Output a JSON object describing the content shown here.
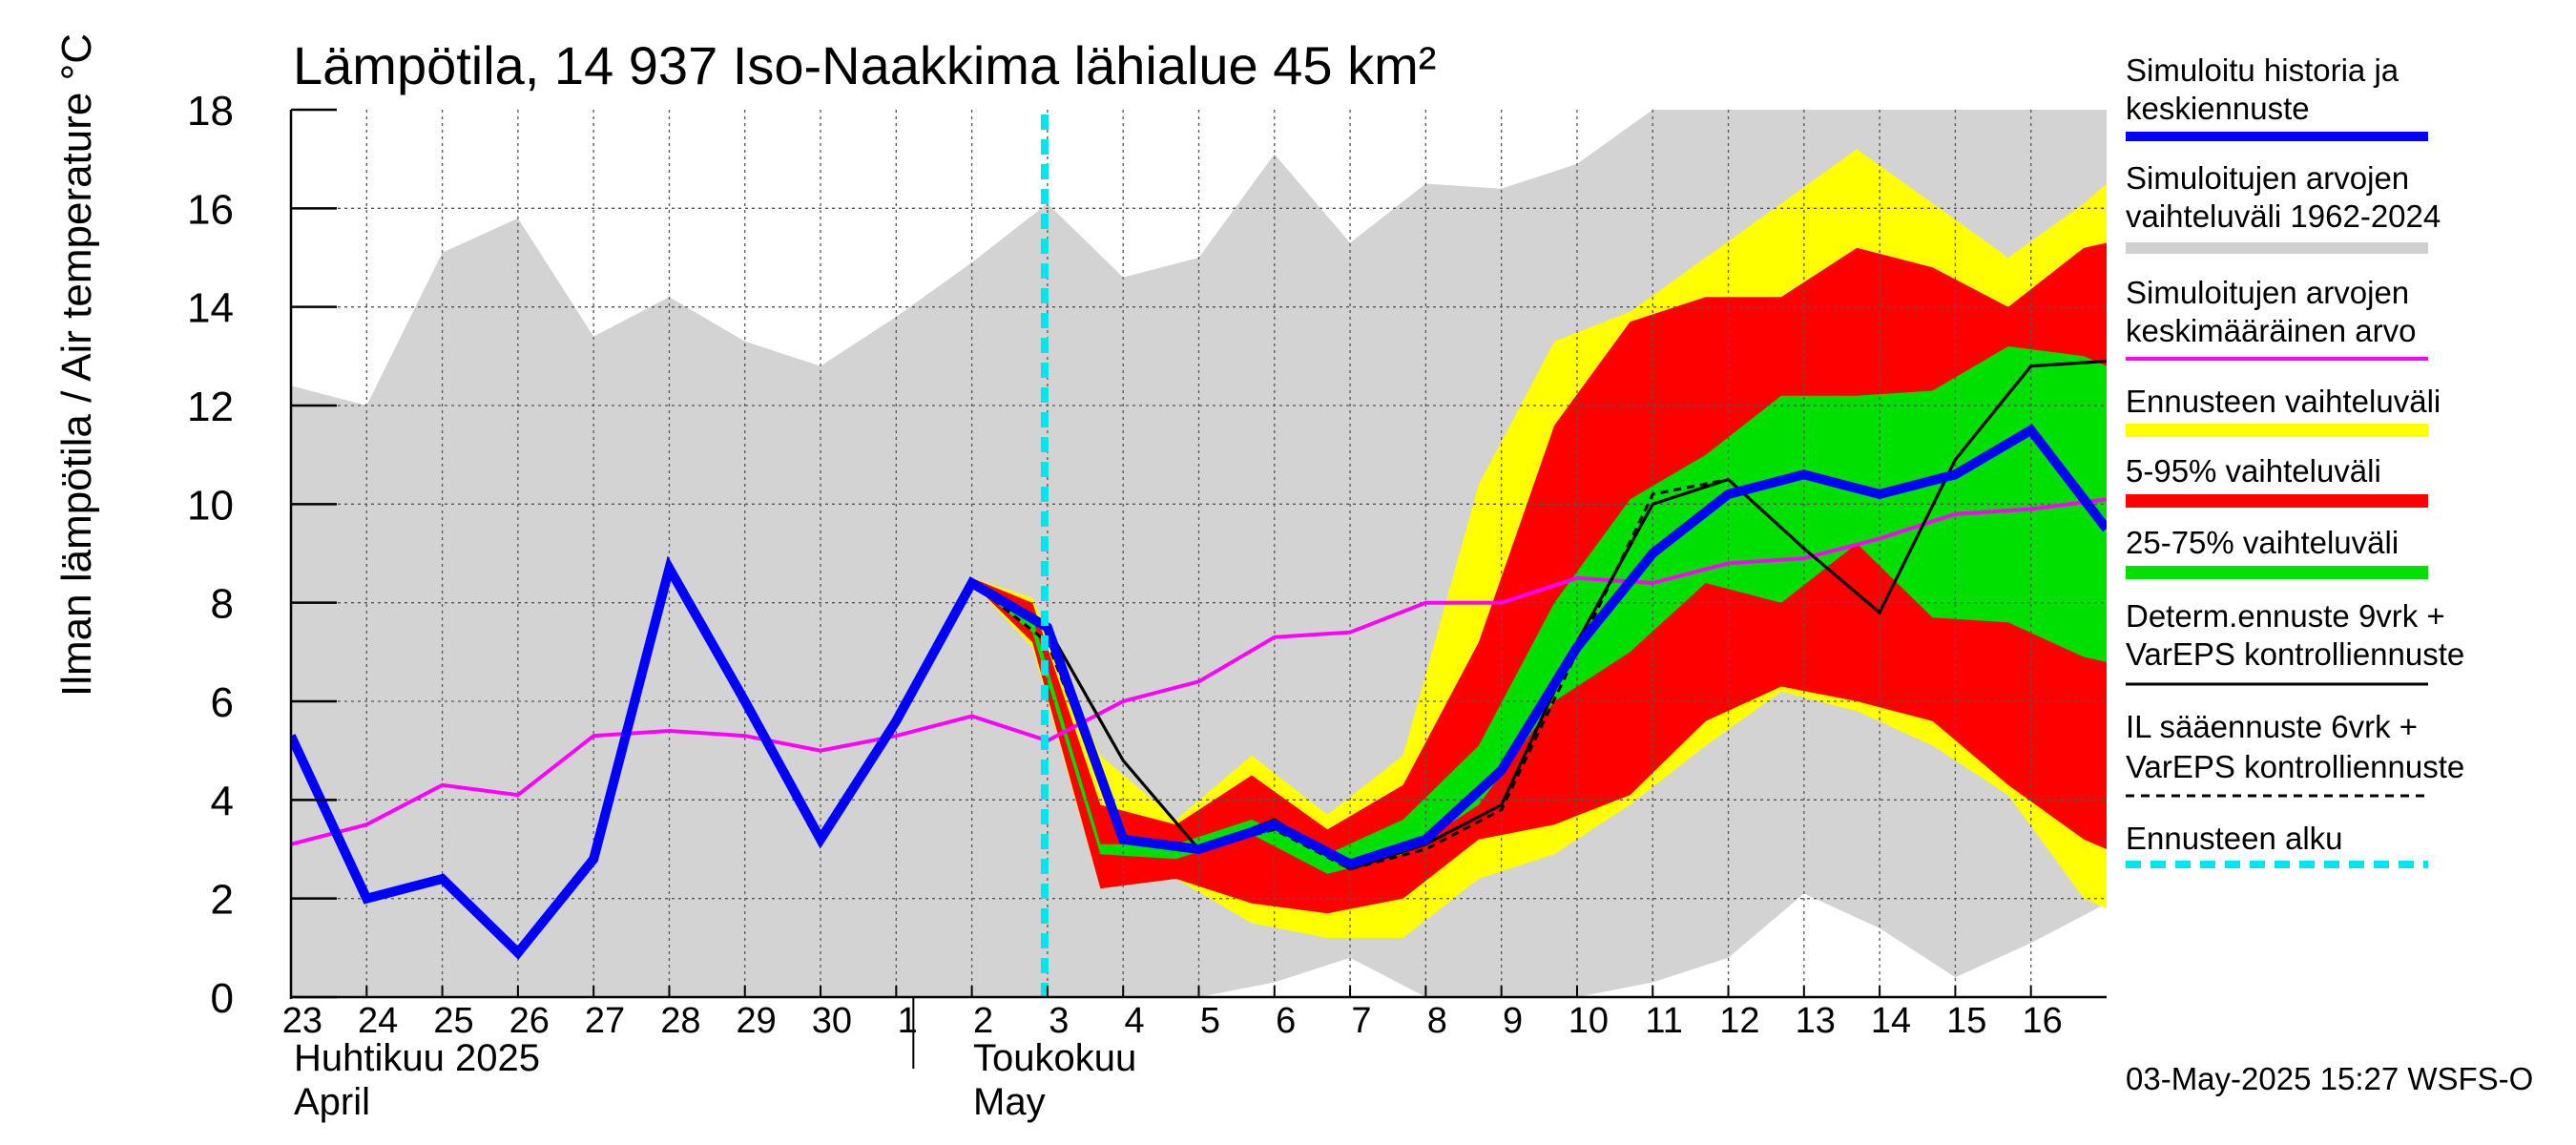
{
  "chart_data": {
    "type": "area",
    "title": "Lämpötila, 14 937 Iso-Naakkima lähialue 45 km²",
    "ylabel": "Ilman lämpötila / Air temperature   °C",
    "ylim": [
      0,
      18
    ],
    "yticks": [
      "0",
      "2",
      "4",
      "6",
      "8",
      "10",
      "12",
      "14",
      "16",
      "18"
    ],
    "day_labels": [
      "23",
      "24",
      "25",
      "26",
      "27",
      "28",
      "29",
      "30",
      "1",
      "2",
      "3",
      "4",
      "5",
      "6",
      "7",
      "8",
      "9",
      "10",
      "11",
      "12",
      "13",
      "14",
      "15",
      "16"
    ],
    "month_labels": {
      "april_fi": "Huhtikuu  2025",
      "april_en": "April",
      "may_fi": "Toukokuu",
      "may_en": "May"
    },
    "x_start": 0,
    "x_end": 24,
    "month_divider_x": 8,
    "forecast_start_x": 10,
    "historical_range": {
      "x": [
        0,
        1,
        2,
        3,
        4,
        5,
        6,
        7,
        8,
        9,
        10,
        11,
        12,
        13,
        14,
        15,
        16,
        17,
        18,
        19,
        20,
        21,
        22,
        23,
        24
      ],
      "upper": [
        12.4,
        12.0,
        15.1,
        15.8,
        13.4,
        14.2,
        13.3,
        12.8,
        13.8,
        14.9,
        16.1,
        14.6,
        15.0,
        17.1,
        15.3,
        16.5,
        16.4,
        16.9,
        18.0,
        18.0,
        18.0,
        18.0,
        18.0,
        18.0,
        18.0
      ],
      "lower": [
        0,
        0,
        0,
        0,
        0,
        0,
        0,
        0,
        0,
        0,
        0,
        0,
        0,
        0.3,
        0.8,
        0,
        0,
        0,
        0.3,
        0.8,
        2.1,
        1.4,
        0.4,
        1.1,
        1.9
      ]
    },
    "forecast_bands": {
      "x": [
        9.0,
        9.8,
        10.7,
        11.7,
        12.7,
        13.7,
        14.7,
        15.7,
        16.7,
        17.7,
        18.7,
        19.7,
        20.7,
        21.7,
        22.7,
        23.7,
        24.0
      ],
      "full_upper": [
        8.5,
        8.1,
        4.9,
        3.6,
        4.9,
        3.7,
        4.9,
        10.4,
        13.3,
        13.9,
        15.0,
        16.1,
        17.2,
        16.1,
        15.0,
        16.1,
        16.5
      ],
      "full_lower": [
        8.4,
        7.1,
        2.2,
        2.4,
        1.5,
        1.2,
        1.2,
        2.4,
        2.9,
        3.9,
        5.1,
        6.2,
        5.8,
        5.1,
        4.1,
        2.0,
        1.8
      ],
      "p95_upper": [
        8.5,
        8.0,
        3.9,
        3.5,
        4.5,
        3.4,
        4.3,
        7.2,
        11.6,
        13.7,
        14.2,
        14.2,
        15.2,
        14.8,
        14.0,
        15.2,
        15.3
      ],
      "p5_lower": [
        8.4,
        7.2,
        2.2,
        2.4,
        1.9,
        1.7,
        2.0,
        3.2,
        3.5,
        4.1,
        5.6,
        6.3,
        6.0,
        5.6,
        4.3,
        3.2,
        3.0
      ],
      "p75_upper": [
        8.4,
        7.7,
        3.1,
        3.1,
        3.6,
        2.9,
        3.6,
        5.1,
        8.0,
        10.1,
        11.0,
        12.2,
        12.2,
        12.3,
        13.2,
        13.0,
        12.8
      ],
      "p25_lower": [
        8.4,
        7.4,
        2.9,
        2.8,
        3.3,
        2.5,
        2.9,
        3.9,
        6.0,
        7.0,
        8.4,
        8.0,
        9.2,
        7.7,
        7.6,
        6.9,
        6.8
      ]
    },
    "series": [
      {
        "name": "Simuloitu historia ja keskiennuste",
        "color": "#0000ff",
        "x": [
          0,
          1,
          2,
          3,
          4,
          5,
          6,
          7,
          8,
          9,
          10,
          11,
          12,
          13,
          14,
          15,
          16,
          17,
          18,
          19,
          20,
          21,
          22,
          23,
          24
        ],
        "values": [
          5.3,
          2.0,
          2.4,
          0.9,
          2.8,
          8.7,
          6.0,
          3.2,
          5.6,
          8.4,
          7.5,
          3.2,
          3.0,
          3.5,
          2.7,
          3.2,
          4.6,
          7.1,
          9.0,
          10.2,
          10.6,
          10.2,
          10.6,
          11.5,
          9.5
        ]
      },
      {
        "name": "Simuloitujen arvojen keskimääräinen arvo",
        "color": "#ff00ff",
        "x": [
          0,
          1,
          2,
          3,
          4,
          5,
          6,
          7,
          8,
          9,
          10,
          11,
          12,
          13,
          14,
          15,
          16,
          17,
          18,
          19,
          20,
          21,
          22,
          23,
          24
        ],
        "values": [
          3.1,
          3.5,
          4.3,
          4.1,
          5.3,
          5.4,
          5.3,
          5.0,
          5.3,
          5.7,
          5.2,
          6.0,
          6.4,
          7.3,
          7.4,
          8.0,
          8.0,
          8.5,
          8.4,
          8.8,
          8.9,
          9.3,
          9.8,
          9.9,
          10.1
        ]
      },
      {
        "name": "Determ.ennuste 9vrk + VarEPS kontrolliennuste",
        "color": "#000000",
        "x": [
          9,
          10,
          11,
          12,
          13,
          14,
          15,
          16,
          17,
          18,
          19,
          20,
          21,
          22,
          23,
          24
        ],
        "values": [
          8.4,
          7.5,
          4.8,
          3.0,
          3.6,
          2.6,
          3.1,
          3.9,
          7.2,
          10.0,
          10.5,
          9.1,
          7.8,
          10.9,
          12.8,
          12.9
        ]
      },
      {
        "name": "IL sääennuste 6vrk + VarEPS kontrolliennuste",
        "color": "#000000",
        "x": [
          9,
          10,
          11,
          12,
          13,
          14,
          15,
          16,
          17,
          18,
          19
        ],
        "values": [
          8.4,
          7.2,
          3.2,
          3.0,
          3.4,
          2.6,
          3.0,
          3.8,
          7.0,
          10.2,
          10.5
        ]
      }
    ],
    "legend": [
      {
        "label": "Simuloitu historia ja keskiennuste",
        "color": "#0000ff"
      },
      {
        "label": "Simuloitujen arvojen vaihteluväli 1962-2024",
        "color": "#d0d0d0"
      },
      {
        "label": "Simuloitujen arvojen keskimääräinen arvo",
        "color": "#ff00ff"
      },
      {
        "label": "Ennusteen vaihteluväli",
        "color": "#ffff00"
      },
      {
        "label": "5-95% vaihteluväli",
        "color": "#ff0000"
      },
      {
        "label": "25-75% vaihteluväli",
        "color": "#00e000"
      },
      {
        "label": "Determ.ennuste 9vrk + VarEPS kontrolliennuste",
        "color": "#000000"
      },
      {
        "label": "IL sääennuste 6vrk  + VarEPS kontrolliennuste",
        "color": "#000000"
      },
      {
        "label": "Ennusteen alku",
        "color": "#00e5ee"
      }
    ],
    "footer": "03-May-2025 15:27 WSFS-O"
  },
  "legend_text": {
    "l1a": "Simuloitu historia ja",
    "l1b": "keskiennuste",
    "l2a": "Simuloitujen arvojen",
    "l2b": "vaihteluväli 1962-2024",
    "l3a": "Simuloitujen arvojen",
    "l3b": "keskimääräinen arvo",
    "l4": "Ennusteen vaihteluväli",
    "l5": "5-95% vaihteluväli",
    "l6": "25-75% vaihteluväli",
    "l7a": "Determ.ennuste 9vrk +",
    "l7b": "VarEPS kontrolliennuste",
    "l8a": "IL sääennuste 6vrk  +",
    "l8b": "  VarEPS kontrolliennuste",
    "l9": "Ennusteen alku"
  }
}
